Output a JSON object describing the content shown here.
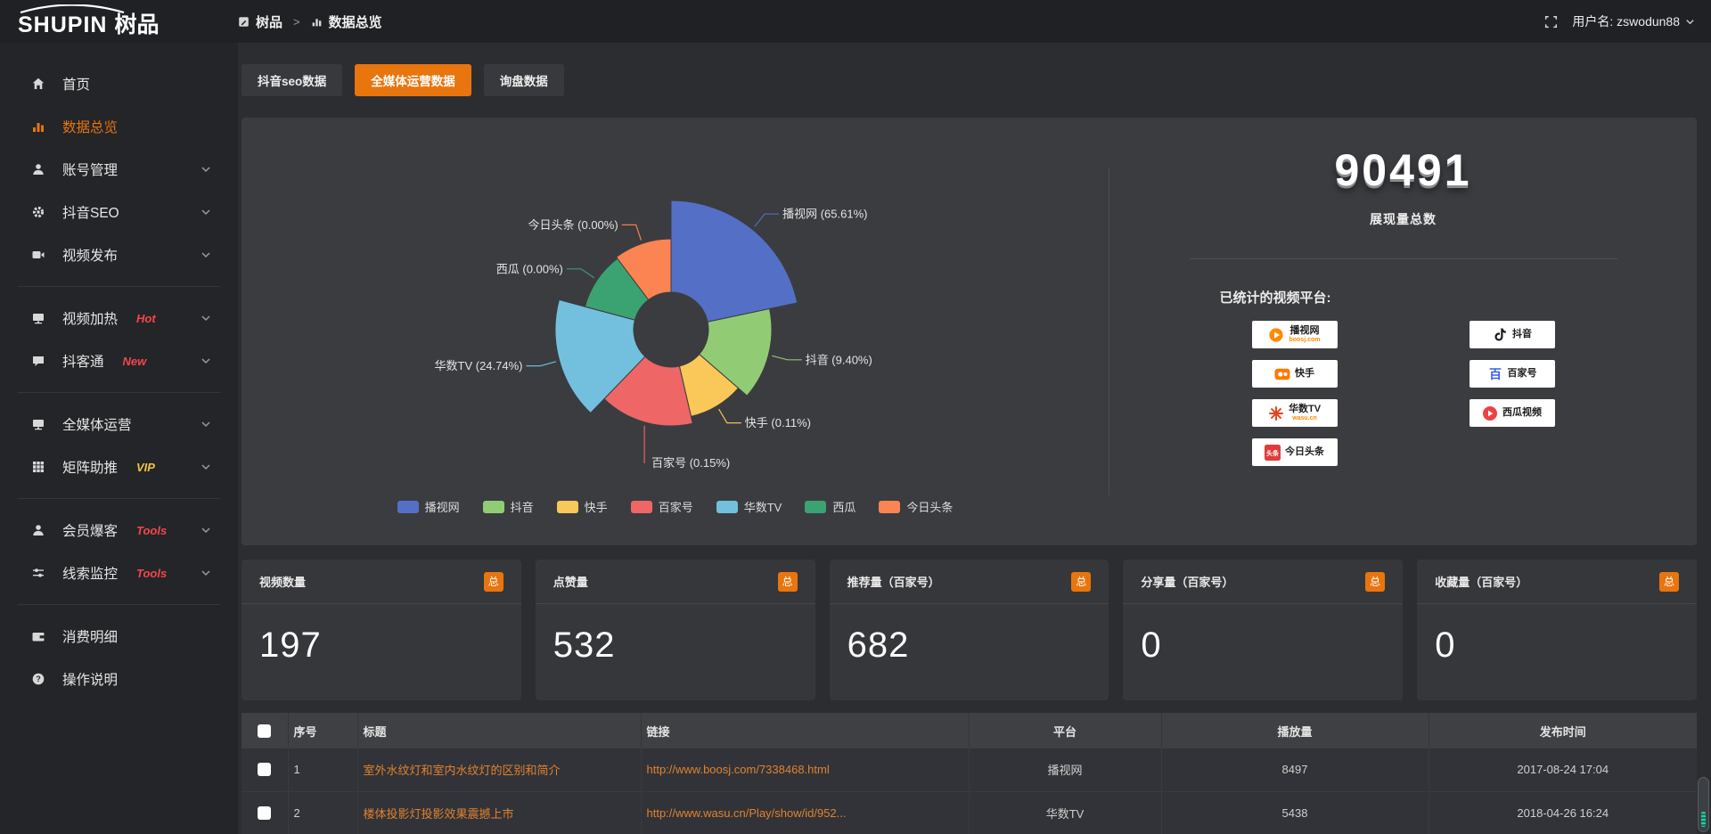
{
  "topbar": {
    "logo_en": "SHUPIN",
    "logo_cn": "树品",
    "breadcrumb": [
      {
        "id": "shupin",
        "icon": "doc",
        "label": "树品"
      },
      {
        "id": "data-overview",
        "icon": "chart",
        "label": "数据总览"
      }
    ],
    "separator": ">",
    "username": "用户名: zswodun88"
  },
  "sidebar": {
    "items": [
      {
        "id": "home",
        "icon": "home",
        "label": "首页"
      },
      {
        "id": "data-overview",
        "icon": "chart",
        "label": "数据总览",
        "active": true
      },
      {
        "id": "account-management",
        "icon": "user",
        "label": "账号管理",
        "chevron": true
      },
      {
        "id": "douyin-seo",
        "icon": "gear",
        "label": "抖音SEO",
        "chevron": true
      },
      {
        "id": "video-publish",
        "icon": "video",
        "label": "视频发布",
        "chevron": true
      },
      {
        "divider": true
      },
      {
        "id": "video-heating",
        "icon": "display",
        "label": "视频加热",
        "badge": "Hot",
        "badge_color": "#f5464a",
        "chevron": true
      },
      {
        "id": "douketong",
        "icon": "comment",
        "label": "抖客通",
        "badge": "New",
        "badge_color": "#f5464a",
        "chevron": true
      },
      {
        "divider": true
      },
      {
        "id": "all-media-operation",
        "icon": "monitor",
        "label": "全媒体运营",
        "chevron": true
      },
      {
        "id": "matrix-boost",
        "icon": "grid",
        "label": "矩阵助推",
        "badge": "VIP",
        "badge_color": "#f3c243",
        "chevron": true
      },
      {
        "divider": true
      },
      {
        "id": "member-baoke",
        "icon": "user",
        "label": "会员爆客",
        "badge": "Tools",
        "badge_color": "#f5464a",
        "chevron": true
      },
      {
        "id": "clue-monitor",
        "icon": "sliders",
        "label": "线索监控",
        "badge": "Tools",
        "badge_color": "#f5464a",
        "chevron": true
      },
      {
        "divider": true
      },
      {
        "id": "consumption-details",
        "icon": "wallet",
        "label": "消费明细"
      },
      {
        "id": "operation-guide",
        "icon": "question",
        "label": "操作说明"
      }
    ]
  },
  "tabs": [
    {
      "id": "douyin-seo-data",
      "label": "抖音seo数据",
      "active": false
    },
    {
      "id": "all-media-operation-data",
      "label": "全媒体运营数据",
      "active": true
    },
    {
      "id": "inquiry-data",
      "label": "询盘数据",
      "active": false
    }
  ],
  "chart_data": {
    "type": "pie",
    "variant": "nightingale-rose-donut",
    "title": "",
    "legend_position": "bottom",
    "inner_radius": 42,
    "slices": [
      {
        "id": "boosj",
        "name": "播视网",
        "pct": 65.61,
        "label": "播视网 (65.61%)",
        "color": "#5470c6",
        "a0": 0,
        "a1": 78,
        "r": 145,
        "side": "right"
      },
      {
        "id": "douyin",
        "name": "抖音",
        "pct": 9.4,
        "label": "抖音 (9.40%)",
        "color": "#91cc75",
        "a0": 78,
        "a1": 131,
        "r": 113,
        "side": "right"
      },
      {
        "id": "kuaishou",
        "name": "快手",
        "pct": 0.11,
        "label": "快手 (0.11%)",
        "color": "#fac858",
        "a0": 131,
        "a1": 167,
        "r": 100,
        "side": "right"
      },
      {
        "id": "baijiahao",
        "name": "百家号",
        "pct": 0.15,
        "label": "百家号 (0.15%)",
        "color": "#ee6666",
        "a0": 167,
        "a1": 224,
        "r": 108,
        "side": "down"
      },
      {
        "id": "wasu-tv",
        "name": "华数TV",
        "pct": 24.74,
        "label": "华数TV (24.74%)",
        "color": "#73c0de",
        "a0": 224,
        "a1": 285,
        "r": 130,
        "side": "left"
      },
      {
        "id": "xigua",
        "name": "西瓜",
        "pct": 0.0,
        "label": "西瓜 (0.00%)",
        "color": "#3ba272",
        "a0": 285,
        "a1": 323,
        "r": 100,
        "side": "left"
      },
      {
        "id": "toutiao",
        "name": "今日头条",
        "pct": 0.0,
        "label": "今日头条 (0.00%)",
        "color": "#fc8452",
        "a0": 323,
        "a1": 360,
        "r": 102,
        "side": "left"
      }
    ]
  },
  "summary": {
    "total": "90491",
    "total_label": "展现量总数",
    "platforms_label": "已统计的视频平台:",
    "badges": [
      {
        "id": "boosj",
        "name": "播视网",
        "sub": "boosj.com",
        "icon": "boosj",
        "col": 1
      },
      {
        "id": "kuaishou",
        "name": "快手",
        "sub": "",
        "icon": "kuaishou",
        "col": 1
      },
      {
        "id": "wasu-tv",
        "name": "华数TV",
        "sub": "wasu.cn",
        "icon": "wasu",
        "col": 1
      },
      {
        "id": "toutiao",
        "name": "今日头条",
        "sub": "",
        "icon": "toutiao",
        "col": 1
      },
      {
        "id": "douyin",
        "name": "抖音",
        "sub": "",
        "icon": "douyin",
        "col": 2
      },
      {
        "id": "baijiahao",
        "name": "百家号",
        "sub": "",
        "icon": "baijiahao",
        "col": 2
      },
      {
        "id": "xigua",
        "name": "西瓜视频",
        "sub": "",
        "icon": "xigua",
        "col": 2
      }
    ]
  },
  "stat_cards": [
    {
      "id": "video-count",
      "label": "视频数量",
      "badge": "总",
      "value": "197"
    },
    {
      "id": "like-count",
      "label": "点赞量",
      "badge": "总",
      "value": "532"
    },
    {
      "id": "recommend-count",
      "label": "推荐量（百家号）",
      "badge": "总",
      "value": "682"
    },
    {
      "id": "share-count",
      "label": "分享量（百家号）",
      "badge": "总",
      "value": "0"
    },
    {
      "id": "favorite-count",
      "label": "收藏量（百家号）",
      "badge": "总",
      "value": "0"
    }
  ],
  "table": {
    "headers": [
      "序号",
      "标题",
      "链接",
      "平台",
      "播放量",
      "发布时间"
    ],
    "rows": [
      {
        "no": "1",
        "title": "室外水纹灯和室内水纹灯的区别和简介",
        "link": "http://www.boosj.com/7338468.html",
        "platform": "播视网",
        "plays": "8497",
        "time": "2017-08-24 17:04"
      },
      {
        "no": "2",
        "title": "楼体投影灯投影效果震撼上市",
        "link": "http://www.wasu.cn/Play/show/id/952...",
        "platform": "华数TV",
        "plays": "5438",
        "time": "2018-04-26 16:24"
      }
    ]
  },
  "colors": {
    "accent": "#e8750e",
    "link": "#e0822e",
    "panel_bg": "#3b3c40",
    "sidebar_bg": "#232528",
    "topbar_bg": "#1f2124",
    "page_bg": "#2c2d31"
  }
}
